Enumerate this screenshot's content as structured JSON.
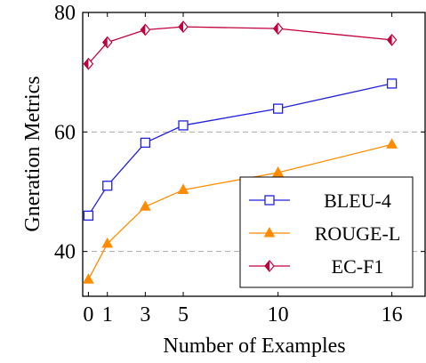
{
  "chart_data": {
    "type": "line",
    "xlabel": "Number of Examples",
    "ylabel": "Gneration Metrics",
    "x": [
      0,
      1,
      3,
      5,
      10,
      16
    ],
    "xticks": [
      0,
      1,
      3,
      5,
      10,
      16
    ],
    "yticks": [
      40,
      60,
      80
    ],
    "xlim": [
      -0.3,
      17.8
    ],
    "ylim": [
      32.5,
      80
    ],
    "grid": "dashed horizontal at 40 and 60",
    "legend_position": "lower-right",
    "series": [
      {
        "name": "BLEU-4",
        "color": "#2222dd",
        "marker": "square",
        "values": [
          46.0,
          51.0,
          58.2,
          61.1,
          63.9,
          68.1
        ]
      },
      {
        "name": "ROUGE-L",
        "color": "#ff8c00",
        "marker": "triangle",
        "values": [
          35.3,
          41.3,
          47.5,
          50.3,
          53.2,
          57.9
        ]
      },
      {
        "name": "EC-F1",
        "color": "#c0003c",
        "marker": "diamond",
        "values": [
          71.4,
          75.0,
          77.1,
          77.6,
          77.3,
          75.4
        ]
      }
    ]
  }
}
